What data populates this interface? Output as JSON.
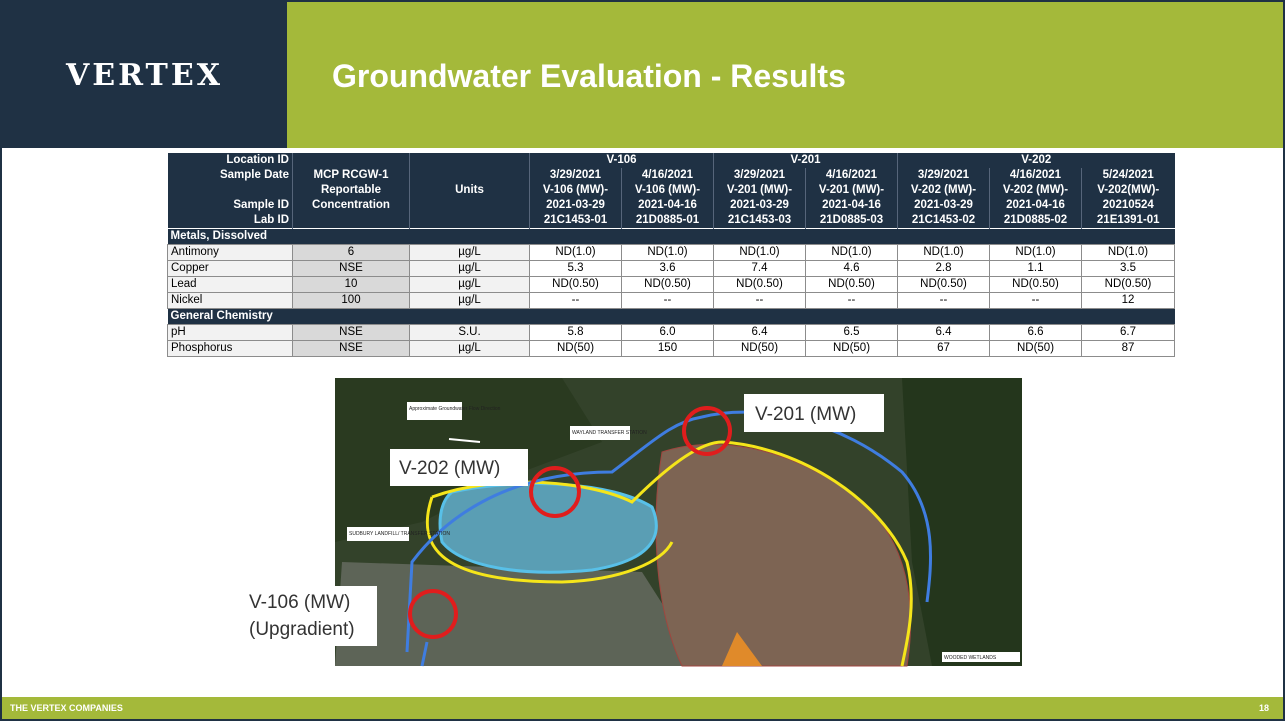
{
  "header": {
    "logo": "VERTEX",
    "title": "Groundwater Evaluation - Results"
  },
  "table": {
    "row_labels": [
      "Location ID",
      "Sample Date",
      "Sample ID",
      "Lab ID"
    ],
    "mcp_header": [
      "MCP RCGW-1",
      "Reportable",
      "Concentration"
    ],
    "units_header": "Units",
    "locations": [
      "V-106",
      "V-201",
      "V-202"
    ],
    "columns": [
      {
        "date": "3/29/2021",
        "sample_id": [
          "V-106 (MW)-",
          "2021-03-29"
        ],
        "lab_id": "21C1453-01"
      },
      {
        "date": "4/16/2021",
        "sample_id": [
          "V-106 (MW)-",
          "2021-04-16"
        ],
        "lab_id": "21D0885-01"
      },
      {
        "date": "3/29/2021",
        "sample_id": [
          "V-201 (MW)-",
          "2021-03-29"
        ],
        "lab_id": "21C1453-03"
      },
      {
        "date": "4/16/2021",
        "sample_id": [
          "V-201 (MW)-",
          "2021-04-16"
        ],
        "lab_id": "21D0885-03"
      },
      {
        "date": "3/29/2021",
        "sample_id": [
          "V-202 (MW)-",
          "2021-03-29"
        ],
        "lab_id": "21C1453-02"
      },
      {
        "date": "4/16/2021",
        "sample_id": [
          "V-202 (MW)-",
          "2021-04-16"
        ],
        "lab_id": "21D0885-02"
      },
      {
        "date": "5/24/2021",
        "sample_id": [
          "V-202(MW)-",
          "20210524"
        ],
        "lab_id": "21E1391-01"
      }
    ],
    "sections": [
      {
        "name": "Metals, Dissolved",
        "rows": [
          {
            "analyte": "Antimony",
            "standard": "6",
            "units": "µg/L",
            "values": [
              "ND(1.0)",
              "ND(1.0)",
              "ND(1.0)",
              "ND(1.0)",
              "ND(1.0)",
              "ND(1.0)",
              "ND(1.0)"
            ]
          },
          {
            "analyte": "Copper",
            "standard": "NSE",
            "units": "µg/L",
            "values": [
              "5.3",
              "3.6",
              "7.4",
              "4.6",
              "2.8",
              "1.1",
              "3.5"
            ]
          },
          {
            "analyte": "Lead",
            "standard": "10",
            "units": "µg/L",
            "values": [
              "ND(0.50)",
              "ND(0.50)",
              "ND(0.50)",
              "ND(0.50)",
              "ND(0.50)",
              "ND(0.50)",
              "ND(0.50)"
            ]
          },
          {
            "analyte": "Nickel",
            "standard": "100",
            "units": "µg/L",
            "values": [
              "--",
              "--",
              "--",
              "--",
              "--",
              "--",
              "12"
            ]
          }
        ]
      },
      {
        "name": "General Chemistry",
        "rows": [
          {
            "analyte": "pH",
            "standard": "NSE",
            "units": "S.U.",
            "values": [
              "5.8",
              "6.0",
              "6.4",
              "6.5",
              "6.4",
              "6.6",
              "6.7"
            ]
          },
          {
            "analyte": "Phosphorus",
            "standard": "NSE",
            "units": "µg/L",
            "values": [
              "ND(50)",
              "150",
              "ND(50)",
              "ND(50)",
              "67",
              "ND(50)",
              "87"
            ]
          }
        ]
      }
    ]
  },
  "map": {
    "labels": [
      "Approximate Groundwater Flow Direction",
      "WAYLAND TRANSFER STATION",
      "SUDBURY LANDFILL/ TRANSFER STATION",
      "WOODED WETLANDS"
    ],
    "callouts": [
      [
        "V-201 (MW)"
      ],
      [
        "V-202 (MW)"
      ],
      [
        "V-106 (MW)",
        "(Upgradient)"
      ]
    ]
  },
  "footer": {
    "company": "THE VERTEX COMPANIES",
    "page": "18"
  }
}
